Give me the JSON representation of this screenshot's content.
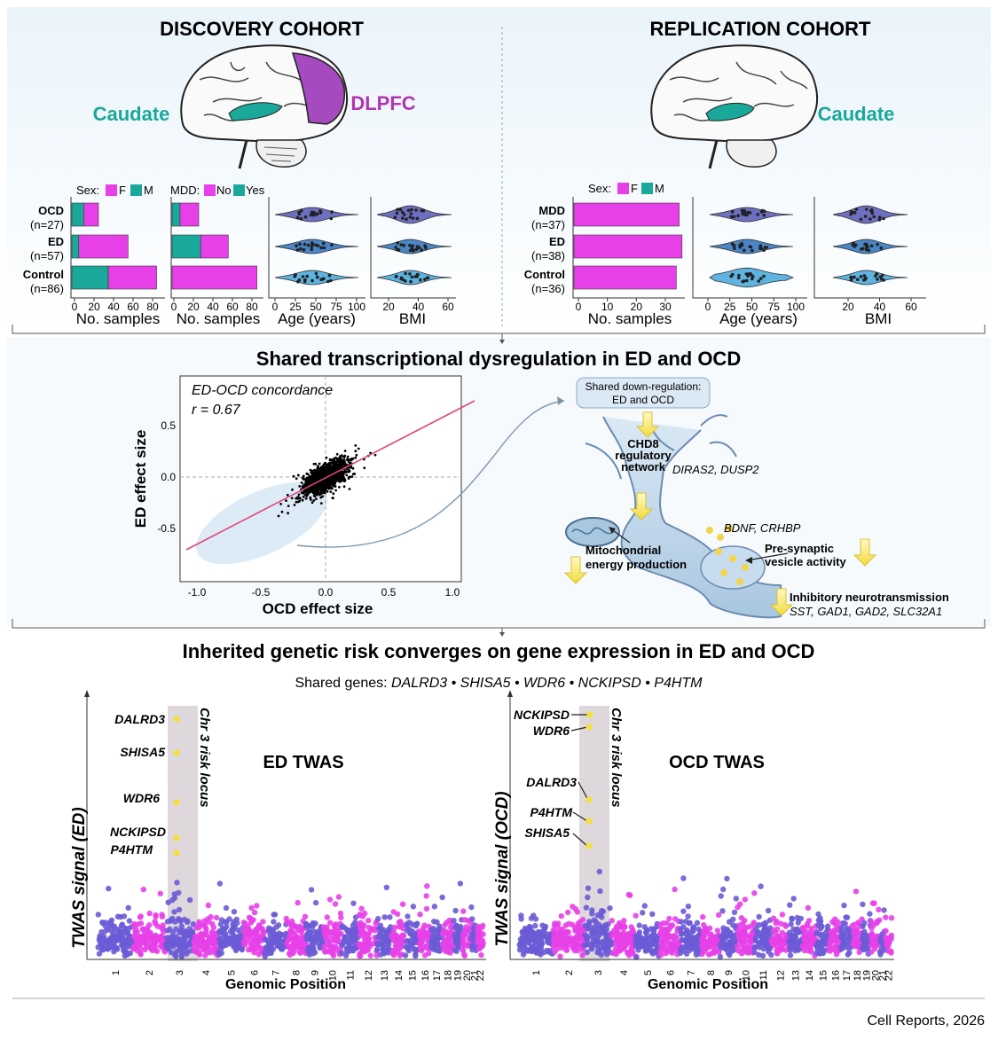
{
  "discovery": {
    "title": "DISCOVERY COHORT",
    "regions": {
      "caudate": "Caudate",
      "dlpfc": "DLPFC"
    },
    "sex_legend": {
      "label": "Sex:",
      "f": "F",
      "m": "M"
    },
    "mdd_legend": {
      "label": "MDD:",
      "no": "No",
      "yes": "Yes"
    },
    "groups": [
      {
        "name": "OCD",
        "n": "(n=27)",
        "sex_m": 12,
        "sex_f": 15,
        "mdd_yes": 8,
        "mdd_no": 19
      },
      {
        "name": "ED",
        "n": "(n=57)",
        "sex_m": 7,
        "sex_f": 50,
        "mdd_yes": 29,
        "mdd_no": 28
      },
      {
        "name": "Control",
        "n": "(n=86)",
        "sex_m": 37,
        "sex_f": 49,
        "mdd_yes": 0,
        "mdd_no": 86
      }
    ],
    "axes": {
      "sex_ticks": [
        "0",
        "20",
        "40",
        "60",
        "80"
      ],
      "mdd_ticks": [
        "0",
        "20",
        "40",
        "60",
        "80"
      ],
      "age_ticks": [
        "0",
        "25",
        "50",
        "75",
        "100"
      ],
      "bmi_ticks": [
        "20",
        "40",
        "60"
      ],
      "xlabel_samples": "No. samples",
      "xlabel_age": "Age (years)",
      "xlabel_bmi": "BMI"
    }
  },
  "replication": {
    "title": "REPLICATION COHORT",
    "regions": {
      "caudate": "Caudate"
    },
    "sex_legend": {
      "label": "Sex:",
      "f": "F",
      "m": "M"
    },
    "groups": [
      {
        "name": "MDD",
        "n": "(n=37)",
        "sex_m": 0,
        "sex_f": 37
      },
      {
        "name": "ED",
        "n": "(n=38)",
        "sex_m": 0,
        "sex_f": 38
      },
      {
        "name": "Control",
        "n": "(n=36)",
        "sex_m": 0,
        "sex_f": 36
      }
    ],
    "axes": {
      "sex_ticks": [
        "0",
        "10",
        "20",
        "30"
      ],
      "age_ticks": [
        "0",
        "25",
        "50",
        "75",
        "100"
      ],
      "bmi_ticks": [
        "20",
        "40",
        "60"
      ],
      "xlabel_samples": "No. samples",
      "xlabel_age": "Age (years)",
      "xlabel_bmi": "BMI"
    }
  },
  "middle": {
    "title": "Shared transcriptional dysregulation in ED and OCD",
    "scatter": {
      "annot1": "ED-OCD concordance",
      "annot2": "r = 0.67",
      "xlabel": "OCD effect size",
      "ylabel": "ED effect size",
      "xticks": [
        "-1.0",
        "-0.5",
        "0.0",
        "0.5",
        "1.0"
      ],
      "yticks": [
        "0.5",
        "0.0",
        "-0.5"
      ],
      "r": 0.67
    },
    "neuron": {
      "box_line1": "Shared down-regulation:",
      "box_line2": "ED and OCD",
      "chd8_1": "CHD8",
      "chd8_2": "regulatory",
      "chd8_3": "network",
      "genes1": "DIRAS2, DUSP2",
      "genes2": "BDNF, CRHBP",
      "mito1": "Mitochondrial",
      "mito2": "energy production",
      "presyn1": "Pre-synaptic",
      "presyn2": "vesicle activity",
      "inhib": "Inhibitory neurotransmission",
      "genes3": "SST, GAD1, GAD2, SLC32A1"
    }
  },
  "bottom": {
    "title": "Inherited genetic risk converges on gene expression in ED and OCD",
    "shared_label": "Shared genes:",
    "shared_genes": "DALRD3 • SHISA5 • WDR6 • NCKIPSD • P4HTM",
    "ed": {
      "title": "ED TWAS",
      "ylabel": "TWAS signal (ED)",
      "xlabel": "Genomic Position",
      "locus": "Chr 3 risk locus",
      "genes": [
        "DALRD3",
        "SHISA5",
        "WDR6",
        "NCKIPSD",
        "P4HTM"
      ]
    },
    "ocd": {
      "title": "OCD TWAS",
      "ylabel": "TWAS signal (OCD)",
      "xlabel": "Genomic Position",
      "locus": "Chr 3 risk locus",
      "genes": [
        "NCKIPSD",
        "WDR6",
        "DALRD3",
        "P4HTM",
        "SHISA5"
      ]
    },
    "chromosomes": [
      "1",
      "2",
      "3",
      "4",
      "5",
      "6",
      "7",
      "8",
      "9",
      "10",
      "11",
      "12",
      "13",
      "14",
      "15",
      "16",
      "17",
      "18",
      "19",
      "20",
      "21",
      "22"
    ]
  },
  "footer": "Cell Reports, 2026",
  "colors": {
    "magenta": "#e840e8",
    "teal": "#1aa89a",
    "purple": "#6b5bd6",
    "teal_text": "#1aa89a",
    "magenta_text": "#b035b0"
  }
}
